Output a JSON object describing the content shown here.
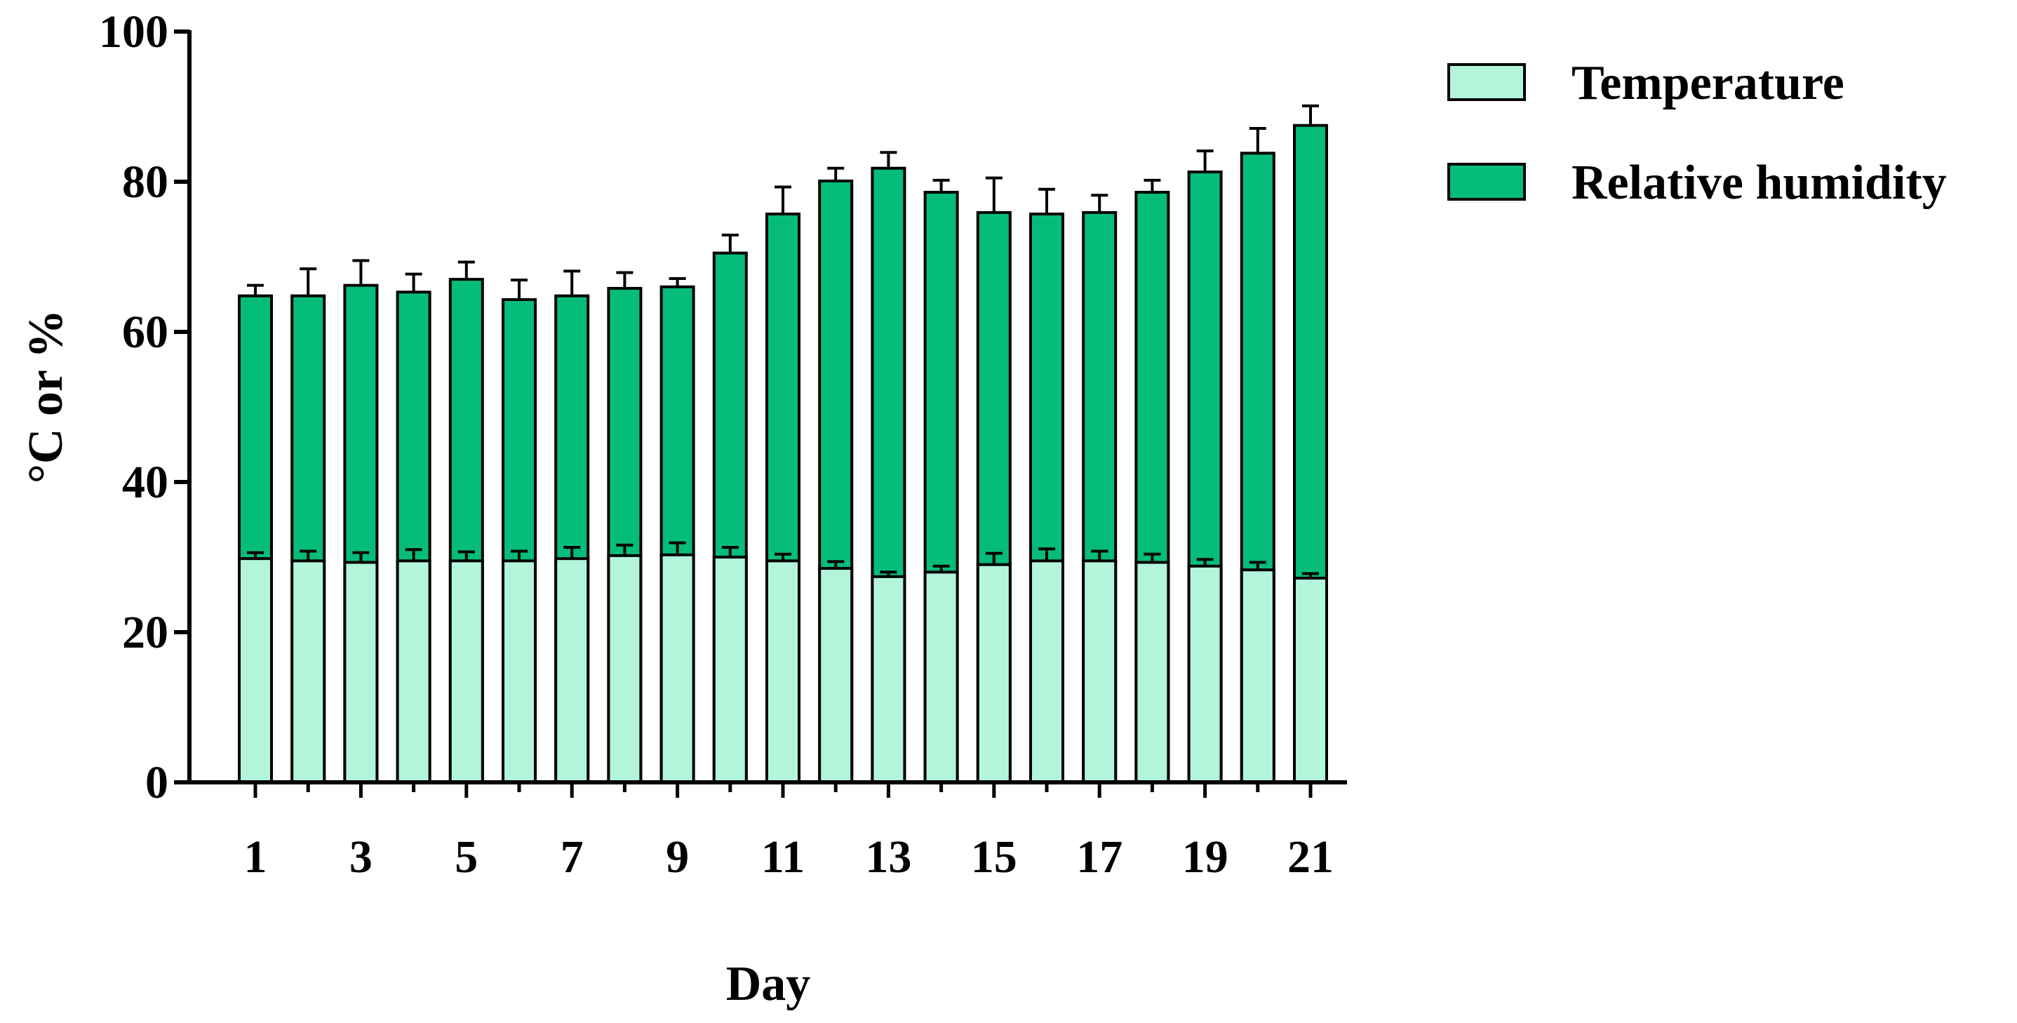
{
  "chart_data": {
    "type": "bar",
    "stacked": false,
    "overlaid": true,
    "xlabel": "Day",
    "ylabel": "°C or %",
    "ylim": [
      0,
      100
    ],
    "yticks": [
      0,
      20,
      40,
      60,
      80,
      100
    ],
    "xtick_labels": [
      "1",
      "3",
      "5",
      "7",
      "9",
      "11",
      "13",
      "15",
      "17",
      "19",
      "21"
    ],
    "categories": [
      1,
      2,
      3,
      4,
      5,
      6,
      7,
      8,
      9,
      10,
      11,
      12,
      13,
      14,
      15,
      16,
      17,
      18,
      19,
      20,
      21
    ],
    "legend_position": "top-right",
    "series": [
      {
        "name": "Relative humidity",
        "color": "#06BC7A",
        "values": [
          64.8,
          64.8,
          66.2,
          65.3,
          67.0,
          64.3,
          64.8,
          65.8,
          66.0,
          70.5,
          75.7,
          80.1,
          81.8,
          78.6,
          75.9,
          75.7,
          75.9,
          78.6,
          81.3,
          83.8,
          87.5
        ],
        "error": [
          1.4,
          3.6,
          3.3,
          2.4,
          2.3,
          2.6,
          3.3,
          2.1,
          1.1,
          2.4,
          3.6,
          1.7,
          2.1,
          1.6,
          4.6,
          3.3,
          2.3,
          1.6,
          2.8,
          3.3,
          2.6
        ]
      },
      {
        "name": "Temperature",
        "color": "#B3F5DB",
        "values": [
          29.8,
          29.5,
          29.3,
          29.5,
          29.5,
          29.5,
          29.8,
          30.2,
          30.3,
          30.0,
          29.5,
          28.5,
          27.4,
          28.0,
          29.0,
          29.5,
          29.5,
          29.3,
          28.8,
          28.3,
          27.2
        ],
        "error": [
          0.8,
          1.3,
          1.3,
          1.5,
          1.2,
          1.3,
          1.5,
          1.4,
          1.6,
          1.3,
          0.9,
          0.9,
          0.6,
          0.8,
          1.5,
          1.6,
          1.3,
          1.1,
          0.9,
          1.0,
          0.6
        ]
      }
    ]
  }
}
